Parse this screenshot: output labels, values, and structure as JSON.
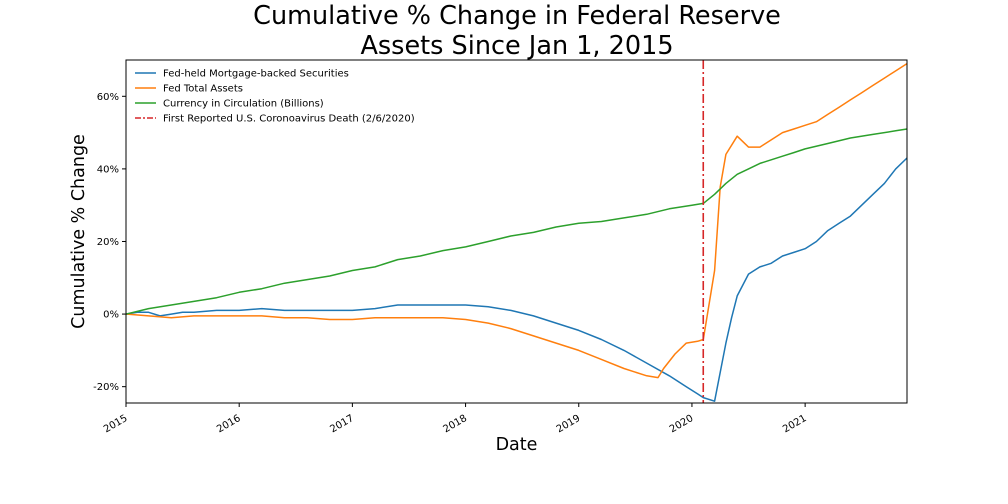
{
  "chart_data": {
    "type": "line",
    "title_lines": [
      "Cumulative % Change in Federal Reserve",
      "Assets Since Jan 1, 2015"
    ],
    "xlabel": "Date",
    "ylabel": "Cumulative % Change",
    "xlim": [
      2015.0,
      2021.9
    ],
    "ylim": [
      -24.5,
      70
    ],
    "x_ticks": [
      2015,
      2016,
      2017,
      2018,
      2019,
      2020,
      2021
    ],
    "x_tick_labels": [
      "2015",
      "2016",
      "2017",
      "2018",
      "2019",
      "2020",
      "2021"
    ],
    "y_ticks": [
      -20,
      0,
      20,
      40,
      60
    ],
    "y_tick_labels": [
      "-20%",
      "0%",
      "20%",
      "40%",
      "60%"
    ],
    "legend_position": "top-left",
    "grid": false,
    "series": [
      {
        "name": "Fed-held Mortgage-backed Securities",
        "color": "#1f77b4",
        "style": "solid",
        "x": [
          2015.0,
          2015.1,
          2015.2,
          2015.3,
          2015.4,
          2015.5,
          2015.6,
          2015.8,
          2016.0,
          2016.2,
          2016.4,
          2016.6,
          2016.8,
          2017.0,
          2017.2,
          2017.4,
          2017.6,
          2017.8,
          2018.0,
          2018.2,
          2018.4,
          2018.6,
          2018.8,
          2019.0,
          2019.2,
          2019.4,
          2019.6,
          2019.8,
          2019.95,
          2020.05,
          2020.1,
          2020.2,
          2020.3,
          2020.35,
          2020.4,
          2020.5,
          2020.6,
          2020.7,
          2020.8,
          2020.9,
          2021.0,
          2021.1,
          2021.2,
          2021.3,
          2021.4,
          2021.5,
          2021.6,
          2021.7,
          2021.8,
          2021.9
        ],
        "values": [
          0,
          0.5,
          0.5,
          -0.5,
          0,
          0.5,
          0.5,
          1,
          1,
          1.5,
          1,
          1,
          1,
          1,
          1.5,
          2.5,
          2.5,
          2.5,
          2.5,
          2,
          1,
          -0.5,
          -2.5,
          -4.5,
          -7,
          -10,
          -13.5,
          -17,
          -20,
          -22,
          -23,
          -24,
          -8,
          -1,
          5,
          11,
          13,
          14,
          16,
          17,
          18,
          20,
          23,
          25,
          27,
          30,
          33,
          36,
          40,
          43
        ]
      },
      {
        "name": "Fed Total Assets",
        "color": "#ff7f0e",
        "style": "solid",
        "x": [
          2015.0,
          2015.2,
          2015.4,
          2015.6,
          2015.8,
          2016.0,
          2016.2,
          2016.4,
          2016.6,
          2016.8,
          2017.0,
          2017.2,
          2017.4,
          2017.6,
          2017.8,
          2018.0,
          2018.2,
          2018.4,
          2018.6,
          2018.8,
          2019.0,
          2019.2,
          2019.4,
          2019.6,
          2019.7,
          2019.75,
          2019.85,
          2019.95,
          2020.05,
          2020.1,
          2020.2,
          2020.25,
          2020.3,
          2020.4,
          2020.5,
          2020.6,
          2020.7,
          2020.8,
          2020.9,
          2021.0,
          2021.1,
          2021.2,
          2021.3,
          2021.4,
          2021.5,
          2021.6,
          2021.7,
          2021.8,
          2021.9
        ],
        "values": [
          0,
          -0.5,
          -1,
          -0.5,
          -0.5,
          -0.5,
          -0.5,
          -1,
          -1,
          -1.5,
          -1.5,
          -1,
          -1,
          -1,
          -1,
          -1.5,
          -2.5,
          -4,
          -6,
          -8,
          -10,
          -12.5,
          -15,
          -17,
          -17.5,
          -15,
          -11,
          -8,
          -7.5,
          -7,
          12,
          35,
          44,
          49,
          46,
          46,
          48,
          50,
          51,
          52,
          53,
          55,
          57,
          59,
          61,
          63,
          65,
          67,
          69
        ]
      },
      {
        "name": "Currency in Circulation (Billions)",
        "color": "#2ca02c",
        "style": "solid",
        "x": [
          2015.0,
          2015.2,
          2015.4,
          2015.6,
          2015.8,
          2016.0,
          2016.2,
          2016.4,
          2016.6,
          2016.8,
          2017.0,
          2017.2,
          2017.4,
          2017.6,
          2017.8,
          2018.0,
          2018.2,
          2018.4,
          2018.6,
          2018.8,
          2019.0,
          2019.2,
          2019.4,
          2019.6,
          2019.8,
          2020.0,
          2020.1,
          2020.2,
          2020.3,
          2020.4,
          2020.5,
          2020.6,
          2020.7,
          2020.8,
          2020.9,
          2021.0,
          2021.2,
          2021.4,
          2021.6,
          2021.8,
          2021.9
        ],
        "values": [
          0,
          1.5,
          2.5,
          3.5,
          4.5,
          6,
          7,
          8.5,
          9.5,
          10.5,
          12,
          13,
          15,
          16,
          17.5,
          18.5,
          20,
          21.5,
          22.5,
          24,
          25,
          25.5,
          26.5,
          27.5,
          29,
          30,
          30.5,
          33,
          36,
          38.5,
          40,
          41.5,
          42.5,
          43.5,
          44.5,
          45.5,
          47,
          48.5,
          49.5,
          50.5,
          51
        ]
      },
      {
        "name": "First Reported U.S. Coronoavirus Death (2/6/2020)",
        "color": "#d62728",
        "style": "dashdot",
        "vline_x": 2020.1
      }
    ]
  }
}
